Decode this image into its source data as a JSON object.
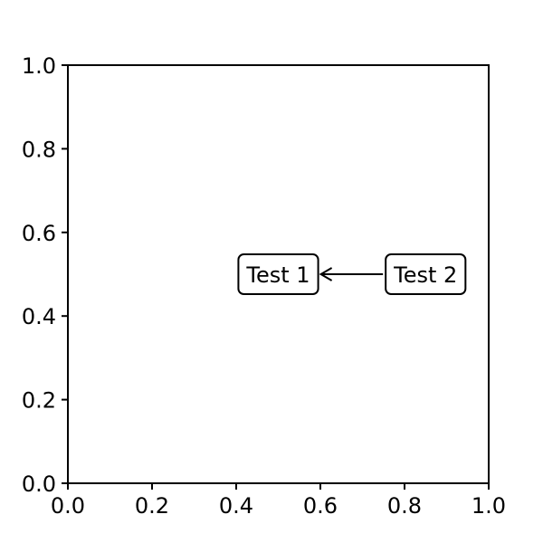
{
  "chart_data": {
    "type": "scatter",
    "title": "",
    "xlabel": "",
    "ylabel": "",
    "xlim": [
      0.0,
      1.0
    ],
    "ylim": [
      0.0,
      1.0
    ],
    "xticks": [
      0.0,
      0.2,
      0.4,
      0.6,
      0.8,
      1.0
    ],
    "yticks": [
      0.0,
      0.2,
      0.4,
      0.6,
      0.8,
      1.0
    ],
    "xtick_labels": [
      "0.0",
      "0.2",
      "0.4",
      "0.6",
      "0.8",
      "1.0"
    ],
    "ytick_labels": [
      "0.0",
      "0.2",
      "0.4",
      "0.6",
      "0.8",
      "1.0"
    ],
    "grid": false,
    "annotations": [
      {
        "text": "Test 1",
        "x": 0.5,
        "y": 0.5,
        "box": "round"
      },
      {
        "text": "Test 2",
        "x": 0.85,
        "y": 0.5,
        "box": "round",
        "arrow_to": "Test 1"
      }
    ],
    "colors": {
      "axis": "#000000",
      "box_edge": "#000000",
      "box_fill": "#ffffff",
      "background": "#ffffff"
    }
  }
}
